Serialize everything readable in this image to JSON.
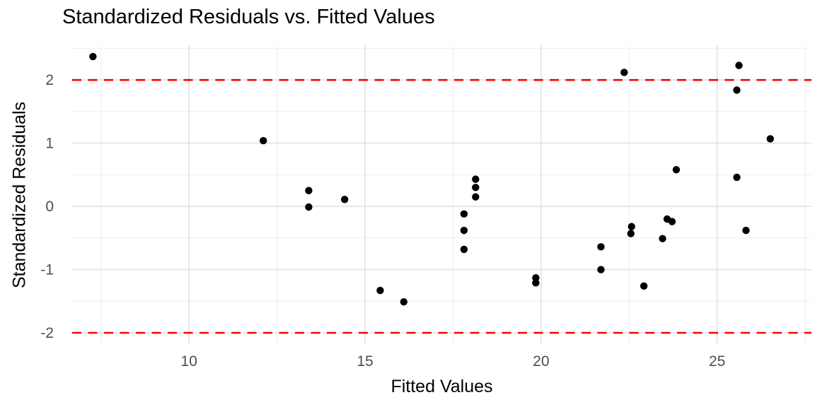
{
  "chart_data": {
    "type": "scatter",
    "title": "Standardized Residuals vs. Fitted Values",
    "xlabel": "Fitted Values",
    "ylabel": "Standardized Residuals",
    "x_ticks": [
      10,
      15,
      20,
      25
    ],
    "y_ticks": [
      -2,
      -1,
      0,
      1,
      2
    ],
    "x_minor": [
      7.5,
      12.5,
      17.5,
      22.5,
      27.5
    ],
    "y_minor": [
      -1.5,
      -0.5,
      0.5,
      1.5,
      2.5
    ],
    "xlim": [
      6.68,
      27.68
    ],
    "ylim": [
      -2.19,
      2.55
    ],
    "grid": true,
    "legend": "none",
    "reference_lines": [
      {
        "y": 2,
        "style": "dashed"
      },
      {
        "y": -2,
        "style": "dashed"
      }
    ],
    "points": [
      [
        7.27,
        2.37
      ],
      [
        12.11,
        1.04
      ],
      [
        13.4,
        0.25
      ],
      [
        13.4,
        -0.01
      ],
      [
        14.42,
        0.11
      ],
      [
        15.43,
        -1.33
      ],
      [
        16.1,
        -1.51
      ],
      [
        17.81,
        -0.12
      ],
      [
        17.81,
        -0.38
      ],
      [
        17.81,
        -0.68
      ],
      [
        18.14,
        0.43
      ],
      [
        18.14,
        0.3
      ],
      [
        18.14,
        0.15
      ],
      [
        19.85,
        -1.13
      ],
      [
        19.85,
        -1.21
      ],
      [
        21.7,
        -0.64
      ],
      [
        21.7,
        -1.0
      ],
      [
        22.36,
        2.12
      ],
      [
        22.55,
        -0.43
      ],
      [
        22.57,
        -0.32
      ],
      [
        22.92,
        -1.26
      ],
      [
        23.45,
        -0.51
      ],
      [
        23.58,
        -0.2
      ],
      [
        23.72,
        -0.24
      ],
      [
        23.84,
        0.58
      ],
      [
        25.56,
        1.84
      ],
      [
        25.56,
        0.46
      ],
      [
        25.62,
        2.23
      ],
      [
        25.82,
        -0.38
      ],
      [
        26.51,
        1.07
      ]
    ],
    "colors": {
      "point": "#000000",
      "reference_line": "#ff0000",
      "grid_major": "#e4e4e4",
      "grid_minor": "#f1f1f1",
      "tick_label": "#4d4d4d",
      "text": "#000000",
      "background": "#ffffff"
    }
  }
}
